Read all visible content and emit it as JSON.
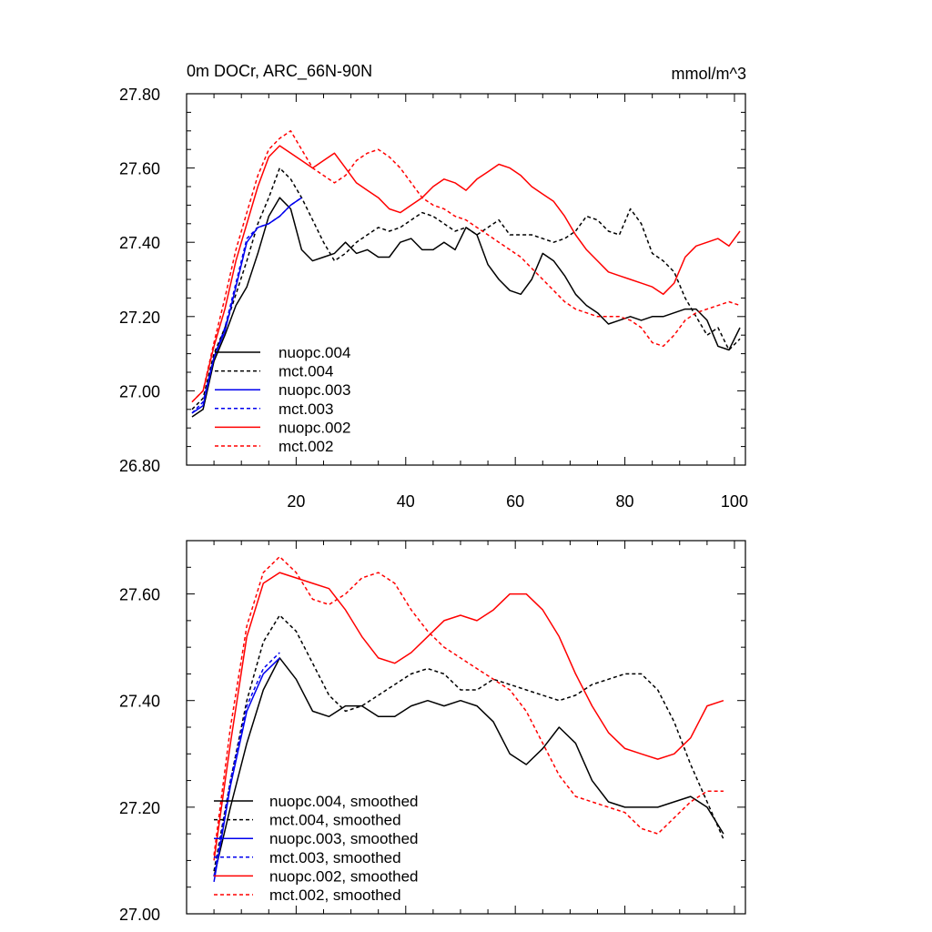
{
  "chart_data": [
    {
      "type": "line",
      "title": "0m DOCr, ARC_66N-90N",
      "units": "mmol/m^3",
      "xlim": [
        0,
        102
      ],
      "ylim": [
        26.8,
        27.8
      ],
      "xticks": [
        20,
        40,
        60,
        80,
        100
      ],
      "xtick_labels": [
        "20",
        "40",
        "60",
        "80",
        "100"
      ],
      "yticks": [
        26.8,
        27.0,
        27.2,
        27.4,
        27.6,
        27.8
      ],
      "ytick_labels": [
        "26.80",
        "27.00",
        "27.20",
        "27.40",
        "27.60",
        "27.80"
      ],
      "legend_position": "bottom-left",
      "series": [
        {
          "name": "nuopc.004",
          "color": "#000000",
          "dash": "solid",
          "x": [
            1,
            3,
            5,
            7,
            9,
            11,
            13,
            15,
            17,
            19,
            21,
            23,
            25,
            27,
            29,
            31,
            33,
            35,
            37,
            39,
            41,
            43,
            45,
            47,
            49,
            51,
            53,
            55,
            57,
            59,
            61,
            63,
            65,
            67,
            69,
            71,
            73,
            75,
            77,
            79,
            81,
            83,
            85,
            87,
            89,
            91,
            93,
            95,
            97,
            99,
            101
          ],
          "y": [
            26.93,
            26.95,
            27.08,
            27.15,
            27.23,
            27.28,
            27.37,
            27.47,
            27.52,
            27.49,
            27.38,
            27.35,
            27.36,
            27.37,
            27.4,
            27.37,
            27.38,
            27.36,
            27.36,
            27.4,
            27.41,
            27.38,
            27.38,
            27.4,
            27.38,
            27.44,
            27.42,
            27.34,
            27.3,
            27.27,
            27.26,
            27.3,
            27.37,
            27.35,
            27.31,
            27.26,
            27.23,
            27.21,
            27.18,
            27.19,
            27.2,
            27.19,
            27.2,
            27.2,
            27.21,
            27.22,
            27.22,
            27.19,
            27.12,
            27.11,
            27.17
          ]
        },
        {
          "name": "mct.004",
          "color": "#000000",
          "dash": "dashed",
          "x": [
            1,
            3,
            5,
            7,
            9,
            11,
            13,
            15,
            17,
            19,
            21,
            23,
            25,
            27,
            29,
            31,
            33,
            35,
            37,
            39,
            41,
            43,
            45,
            47,
            49,
            51,
            53,
            55,
            57,
            59,
            61,
            63,
            65,
            67,
            69,
            71,
            73,
            75,
            77,
            79,
            81,
            83,
            85,
            87,
            89,
            91,
            93,
            95,
            97,
            99,
            101
          ],
          "y": [
            26.95,
            26.98,
            27.1,
            27.17,
            27.26,
            27.35,
            27.45,
            27.52,
            27.6,
            27.57,
            27.52,
            27.46,
            27.4,
            27.35,
            27.37,
            27.4,
            27.42,
            27.44,
            27.43,
            27.44,
            27.46,
            27.48,
            27.47,
            27.45,
            27.43,
            27.44,
            27.42,
            27.44,
            27.46,
            27.42,
            27.42,
            27.42,
            27.41,
            27.4,
            27.41,
            27.43,
            27.47,
            27.46,
            27.43,
            27.42,
            27.49,
            27.45,
            27.37,
            27.35,
            27.32,
            27.25,
            27.2,
            27.15,
            27.17,
            27.11,
            27.14
          ]
        },
        {
          "name": "nuopc.003",
          "color": "#0000ee",
          "dash": "solid",
          "x": [
            1,
            3,
            5,
            7,
            9,
            11,
            13,
            15,
            17,
            19,
            21
          ],
          "y": [
            26.94,
            26.96,
            27.09,
            27.16,
            27.28,
            27.4,
            27.44,
            27.45,
            27.47,
            27.5,
            27.52
          ]
        },
        {
          "name": "mct.003",
          "color": "#0000ee",
          "dash": "dashed",
          "x": [
            1,
            3,
            5,
            7,
            9,
            11,
            13,
            15,
            17,
            19,
            21
          ],
          "y": [
            26.94,
            26.97,
            27.09,
            27.17,
            27.29,
            27.41,
            27.44,
            27.45,
            27.47,
            27.5,
            27.52
          ]
        },
        {
          "name": "nuopc.002",
          "color": "#ff0000",
          "dash": "solid",
          "x": [
            1,
            3,
            5,
            7,
            9,
            11,
            13,
            15,
            17,
            19,
            21,
            23,
            25,
            27,
            29,
            31,
            33,
            35,
            37,
            39,
            41,
            43,
            45,
            47,
            49,
            51,
            53,
            55,
            57,
            59,
            61,
            63,
            65,
            67,
            69,
            71,
            73,
            75,
            77,
            79,
            81,
            83,
            85,
            87,
            89,
            91,
            93,
            95,
            97,
            99,
            101
          ],
          "y": [
            26.97,
            27.0,
            27.12,
            27.22,
            27.35,
            27.45,
            27.55,
            27.63,
            27.66,
            27.64,
            27.62,
            27.6,
            27.62,
            27.64,
            27.6,
            27.56,
            27.54,
            27.52,
            27.49,
            27.48,
            27.5,
            27.52,
            27.55,
            27.57,
            27.56,
            27.54,
            27.57,
            27.59,
            27.61,
            27.6,
            27.58,
            27.55,
            27.53,
            27.51,
            27.47,
            27.42,
            27.38,
            27.35,
            27.32,
            27.31,
            27.3,
            27.29,
            27.28,
            27.26,
            27.29,
            27.36,
            27.39,
            27.4,
            27.41,
            27.39,
            27.43
          ]
        },
        {
          "name": "mct.002",
          "color": "#ff0000",
          "dash": "dashed",
          "x": [
            1,
            3,
            5,
            7,
            9,
            11,
            13,
            15,
            17,
            19,
            21,
            23,
            25,
            27,
            29,
            31,
            33,
            35,
            37,
            39,
            41,
            43,
            45,
            47,
            49,
            51,
            53,
            55,
            57,
            59,
            61,
            63,
            65,
            67,
            69,
            71,
            73,
            75,
            77,
            79,
            81,
            83,
            85,
            87,
            89,
            91,
            93,
            95,
            97,
            99,
            101
          ],
          "y": [
            26.97,
            27.0,
            27.13,
            27.25,
            27.38,
            27.48,
            27.58,
            27.65,
            27.68,
            27.7,
            27.65,
            27.6,
            27.58,
            27.56,
            27.58,
            27.62,
            27.64,
            27.65,
            27.63,
            27.6,
            27.56,
            27.52,
            27.5,
            27.49,
            27.47,
            27.46,
            27.44,
            27.42,
            27.4,
            27.38,
            27.36,
            27.33,
            27.3,
            27.27,
            27.24,
            27.22,
            27.21,
            27.2,
            27.2,
            27.2,
            27.19,
            27.17,
            27.13,
            27.12,
            27.15,
            27.19,
            27.21,
            27.22,
            27.23,
            27.24,
            27.23
          ]
        }
      ]
    },
    {
      "type": "line",
      "xlim": [
        0,
        102
      ],
      "ylim": [
        27.0,
        27.7
      ],
      "xticks": [
        20,
        40,
        60,
        80,
        100
      ],
      "yticks": [
        27.0,
        27.2,
        27.4,
        27.6
      ],
      "ytick_labels": [
        "27.00",
        "27.20",
        "27.40",
        "27.60"
      ],
      "legend_position": "bottom-left",
      "series": [
        {
          "name": "nuopc.004, smoothed",
          "color": "#000000",
          "dash": "solid",
          "x": [
            5,
            8,
            11,
            14,
            17,
            20,
            23,
            26,
            29,
            32,
            35,
            38,
            41,
            44,
            47,
            50,
            53,
            56,
            59,
            62,
            65,
            68,
            71,
            74,
            77,
            80,
            83,
            86,
            89,
            92,
            95,
            98
          ],
          "y": [
            27.07,
            27.2,
            27.32,
            27.42,
            27.48,
            27.44,
            27.38,
            27.37,
            27.39,
            27.39,
            27.37,
            27.37,
            27.39,
            27.4,
            27.39,
            27.4,
            27.39,
            27.36,
            27.3,
            27.28,
            27.31,
            27.35,
            27.32,
            27.25,
            27.21,
            27.2,
            27.2,
            27.2,
            27.21,
            27.22,
            27.2,
            27.15
          ]
        },
        {
          "name": "mct.004, smoothed",
          "color": "#000000",
          "dash": "dashed",
          "x": [
            5,
            8,
            11,
            14,
            17,
            20,
            23,
            26,
            29,
            32,
            35,
            38,
            41,
            44,
            47,
            50,
            53,
            56,
            59,
            62,
            65,
            68,
            71,
            74,
            77,
            80,
            83,
            86,
            89,
            92,
            95,
            98
          ],
          "y": [
            27.08,
            27.25,
            27.4,
            27.51,
            27.56,
            27.53,
            27.47,
            27.41,
            27.38,
            27.39,
            27.41,
            27.43,
            27.45,
            27.46,
            27.45,
            27.42,
            27.42,
            27.44,
            27.43,
            27.42,
            27.41,
            27.4,
            27.41,
            27.43,
            27.44,
            27.45,
            27.45,
            27.42,
            27.36,
            27.28,
            27.21,
            27.14
          ]
        },
        {
          "name": "nuopc.003, smoothed",
          "color": "#0000ee",
          "dash": "solid",
          "x": [
            5,
            8,
            11,
            14,
            17
          ],
          "y": [
            27.06,
            27.24,
            27.38,
            27.45,
            27.48
          ]
        },
        {
          "name": "mct.003, smoothed",
          "color": "#0000ee",
          "dash": "dashed",
          "x": [
            5,
            8,
            11,
            14,
            17
          ],
          "y": [
            27.07,
            27.25,
            27.39,
            27.46,
            27.49
          ]
        },
        {
          "name": "nuopc.002, smoothed",
          "color": "#ff0000",
          "dash": "solid",
          "x": [
            5,
            8,
            11,
            14,
            17,
            20,
            23,
            26,
            29,
            32,
            35,
            38,
            41,
            44,
            47,
            50,
            53,
            56,
            59,
            62,
            65,
            68,
            71,
            74,
            77,
            80,
            83,
            86,
            89,
            92,
            95,
            98
          ],
          "y": [
            27.1,
            27.32,
            27.52,
            27.62,
            27.64,
            27.63,
            27.62,
            27.61,
            27.57,
            27.52,
            27.48,
            27.47,
            27.49,
            27.52,
            27.55,
            27.56,
            27.55,
            27.57,
            27.6,
            27.6,
            27.57,
            27.52,
            27.45,
            27.39,
            27.34,
            27.31,
            27.3,
            27.29,
            27.3,
            27.33,
            27.39,
            27.4
          ]
        },
        {
          "name": "mct.002, smoothed",
          "color": "#ff0000",
          "dash": "dashed",
          "x": [
            5,
            8,
            11,
            14,
            17,
            20,
            23,
            26,
            29,
            32,
            35,
            38,
            41,
            44,
            47,
            50,
            53,
            56,
            59,
            62,
            65,
            68,
            71,
            74,
            77,
            80,
            83,
            86,
            89,
            92,
            95,
            98
          ],
          "y": [
            27.11,
            27.35,
            27.54,
            27.64,
            27.67,
            27.64,
            27.59,
            27.58,
            27.6,
            27.63,
            27.64,
            27.62,
            27.57,
            27.53,
            27.5,
            27.48,
            27.46,
            27.44,
            27.42,
            27.38,
            27.32,
            27.26,
            27.22,
            27.21,
            27.2,
            27.19,
            27.16,
            27.15,
            27.18,
            27.21,
            27.23,
            27.23
          ]
        }
      ]
    }
  ]
}
